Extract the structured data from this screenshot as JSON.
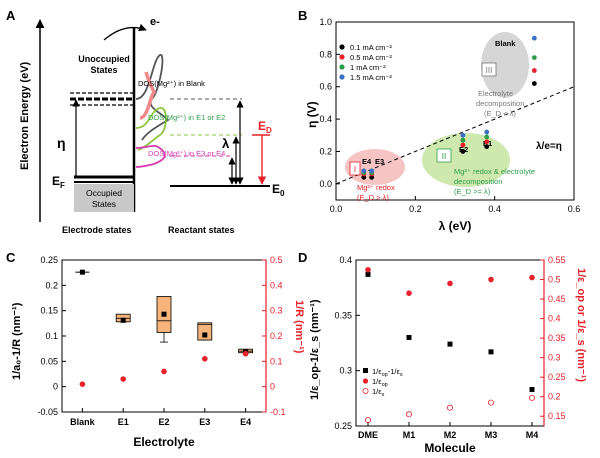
{
  "panels": {
    "a": {
      "letter": "A",
      "y_axis_label": "Electron Energy (eV)",
      "electron_label": "e-",
      "unoccupied": [
        "Unoccupied",
        "States"
      ],
      "occupied": [
        "Occupied",
        "States"
      ],
      "eta": "η",
      "ef": "E",
      "ef_sub": "F",
      "lambda": "λ",
      "ed": "E",
      "ed_sub": "D",
      "e0": "E",
      "e0_sub": "0",
      "dos_blank": "DOS(Mg²⁺) in Blank",
      "dos_e1e2": "DOS(Mg²⁺) in E1 or E2",
      "dos_e3e4": "DOS(Mg²⁺) in E3 or E4",
      "electrode_states": "Electrode states",
      "reactant_states": "Reactant states",
      "colors": {
        "blank": "#555555",
        "e1e2": "#8cc63f",
        "e3e4": "#d63ab0",
        "red": "#e8212a",
        "pink": "#f08a8a"
      }
    },
    "b": {
      "letter": "B",
      "legend": [
        {
          "label": "0.1 mA cm⁻²",
          "color": "#000000"
        },
        {
          "label": "0.5 mA cm⁻²",
          "color": "#e8212a"
        },
        {
          "label": "1 mA cm⁻²",
          "color": "#2e9d4a"
        },
        {
          "label": "1.5 mA cm⁻²",
          "color": "#3b6fc4"
        }
      ],
      "regions": {
        "r1": {
          "roman": "I",
          "text": [
            "Mg²⁺ redox",
            "(E_D > λ)"
          ],
          "color": "#e8212a"
        },
        "r2": {
          "roman": "II",
          "text": [
            "Mg²⁺ redox & electrolyte",
            "decomposition",
            "(E_D >= λ)"
          ],
          "color": "#2e9d4a"
        },
        "r3": {
          "roman": "III",
          "text": [
            "Electrolyte",
            "decomposition",
            "(E_D < λ)"
          ],
          "color": "#777777"
        }
      },
      "line_label": "λ/e=η",
      "chart_data": {
        "type": "scatter",
        "xlabel": "λ (eV)",
        "ylabel": "η (V)",
        "xlim": [
          0.0,
          0.6
        ],
        "ylim": [
          -0.1,
          1.0
        ],
        "xticks": [
          "0.0",
          "0.2",
          "0.4",
          "0.6"
        ],
        "yticks": [
          "0.0",
          "0.2",
          "0.4",
          "0.6",
          "0.8",
          "1.0"
        ],
        "reference_line": {
          "slope": 1,
          "intercept": 0
        },
        "points": [
          {
            "label": "E4",
            "series": "0.1 mA cm⁻²",
            "x": 0.07,
            "y": 0.04
          },
          {
            "label": "E4",
            "series": "0.5 mA cm⁻²",
            "x": 0.07,
            "y": 0.06
          },
          {
            "label": "E4",
            "series": "1 mA cm⁻²",
            "x": 0.07,
            "y": 0.07
          },
          {
            "label": "E4",
            "series": "1.5 mA cm⁻²",
            "x": 0.07,
            "y": 0.08
          },
          {
            "label": "E3",
            "series": "0.1 mA cm⁻²",
            "x": 0.09,
            "y": 0.04
          },
          {
            "label": "E3",
            "series": "0.5 mA cm⁻²",
            "x": 0.09,
            "y": 0.06
          },
          {
            "label": "E3",
            "series": "1 mA cm⁻²",
            "x": 0.09,
            "y": 0.07
          },
          {
            "label": "E3",
            "series": "1.5 mA cm⁻²",
            "x": 0.09,
            "y": 0.08
          },
          {
            "label": "E2",
            "series": "0.1 mA cm⁻²",
            "x": 0.32,
            "y": 0.2
          },
          {
            "label": "E2",
            "series": "0.5 mA cm⁻²",
            "x": 0.32,
            "y": 0.24
          },
          {
            "label": "E2",
            "series": "1 mA cm⁻²",
            "x": 0.32,
            "y": 0.27
          },
          {
            "label": "E2",
            "series": "1.5 mA cm⁻²",
            "x": 0.32,
            "y": 0.3
          },
          {
            "label": "E1",
            "series": "0.1 mA cm⁻²",
            "x": 0.38,
            "y": 0.23
          },
          {
            "label": "E1",
            "series": "0.5 mA cm⁻²",
            "x": 0.38,
            "y": 0.26
          },
          {
            "label": "E1",
            "series": "1 mA cm⁻²",
            "x": 0.38,
            "y": 0.29
          },
          {
            "label": "E1",
            "series": "1.5 mA cm⁻²",
            "x": 0.38,
            "y": 0.32
          },
          {
            "label": "Blank",
            "series": "0.1 mA cm⁻²",
            "x": 0.5,
            "y": 0.62
          },
          {
            "label": "Blank",
            "series": "0.5 mA cm⁻²",
            "x": 0.5,
            "y": 0.7
          },
          {
            "label": "Blank",
            "series": "1 mA cm⁻²",
            "x": 0.5,
            "y": 0.78
          },
          {
            "label": "Blank",
            "series": "1.5 mA cm⁻²",
            "x": 0.5,
            "y": 0.9
          }
        ]
      }
    },
    "c": {
      "letter": "C",
      "chart_data": {
        "type": "box+scatter",
        "categories": [
          "Blank",
          "E1",
          "E2",
          "E3",
          "E4"
        ],
        "xlabel": "Electrolyte",
        "ylabel_left": "1/a₀-1/R (nm⁻¹)",
        "ylabel_right": "1/R (nm⁻¹)",
        "ylim_left": [
          -0.05,
          0.25
        ],
        "ylim_right": [
          -0.1,
          0.5
        ],
        "yticks_left": [
          "-0.05",
          "0",
          "0.05",
          "0.1",
          "0.15",
          "0.2",
          "0.25"
        ],
        "yticks_right": [
          "-0.1",
          "0",
          "0.1",
          "0.2",
          "0.3",
          "0.4",
          "0.5"
        ],
        "series_left_mean": [
          0.226,
          0.131,
          0.143,
          0.102,
          0.069
        ],
        "box_q1": [
          0.226,
          0.128,
          0.107,
          0.092,
          0.067
        ],
        "box_q3": [
          0.226,
          0.143,
          0.178,
          0.126,
          0.074
        ],
        "whisker_low": [
          0.226,
          0.128,
          0.088,
          0.092,
          0.067
        ],
        "whisker_high": [
          0.226,
          0.143,
          0.178,
          0.126,
          0.074
        ],
        "median": [
          0.226,
          0.135,
          0.13,
          0.123,
          0.07
        ],
        "series_right": [
          0.01,
          0.03,
          0.06,
          0.11,
          0.13
        ]
      }
    },
    "d": {
      "letter": "D",
      "chart_data": {
        "type": "scatter",
        "categories": [
          "DME",
          "M1",
          "M2",
          "M3",
          "M4"
        ],
        "xlabel": "Molecule",
        "ylabel_left": "1/ε_op-1/ε_s (nm⁻¹)",
        "ylabel_right": "1/ε_op or 1/ε_s (nm⁻¹)",
        "ylim_left": [
          0.25,
          0.4
        ],
        "ylim_right": [
          0.125,
          0.55
        ],
        "yticks_left": [
          "0.25",
          "0.3",
          "0.35",
          "0.4"
        ],
        "yticks_right": [
          "0.15",
          "0.2",
          "0.25",
          "0.3",
          "0.35",
          "0.4",
          "0.45",
          "0.5",
          "0.55"
        ],
        "series": [
          {
            "name": "1/ε_op-1/ε_s",
            "axis": "left",
            "values": [
              0.387,
              0.33,
              0.324,
              0.317,
              0.283
            ]
          },
          {
            "name": "1/ε_op",
            "axis": "right",
            "values": [
              0.525,
              0.465,
              0.49,
              0.5,
              0.505
            ]
          },
          {
            "name": "1/ε_s",
            "axis": "right",
            "values": [
              0.14,
              0.155,
              0.172,
              0.185,
              0.197
            ]
          }
        ],
        "legend": [
          "1/ε",
          "op",
          "-1/ε",
          "s",
          "1/ε",
          "op",
          "1/ε",
          "s"
        ]
      }
    }
  }
}
